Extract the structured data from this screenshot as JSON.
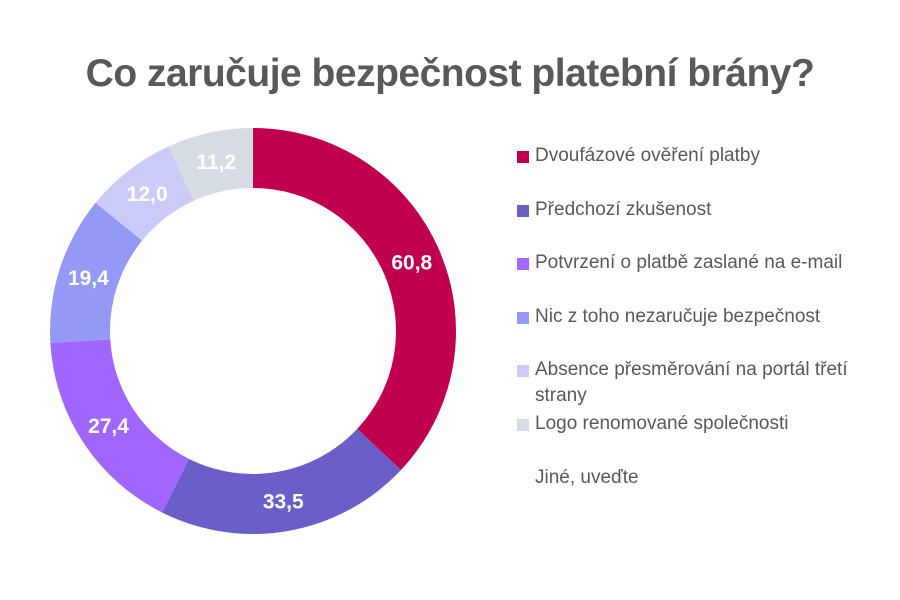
{
  "chart_data": {
    "type": "pie",
    "variant": "donut",
    "title": "Co zaručuje bezpečnost platební brány?",
    "categories": [
      "Dvoufázové ověření platby",
      "Předchozí zkušenost",
      "Potvrzení o platbě zaslané na e-mail",
      "Nic z toho nezaručuje bezpečnost",
      "Absence přesměrování na portál třetí strany",
      "Logo renomované společnosti",
      "Jiné, uveďte"
    ],
    "values": [
      60.8,
      33.5,
      27.4,
      19.4,
      12.0,
      11.2,
      0
    ],
    "data_labels": [
      "60,8",
      "33,5",
      "27,4",
      "19,4",
      "12,0",
      "11,2",
      ""
    ],
    "colors": [
      "#C0004E",
      "#6A5FC8",
      "#A066FF",
      "#9499F5",
      "#CBCBF8",
      "#D6DCE4",
      "#FFFFFF"
    ],
    "legend_position": "right",
    "start_angle": "top, clockwise"
  }
}
